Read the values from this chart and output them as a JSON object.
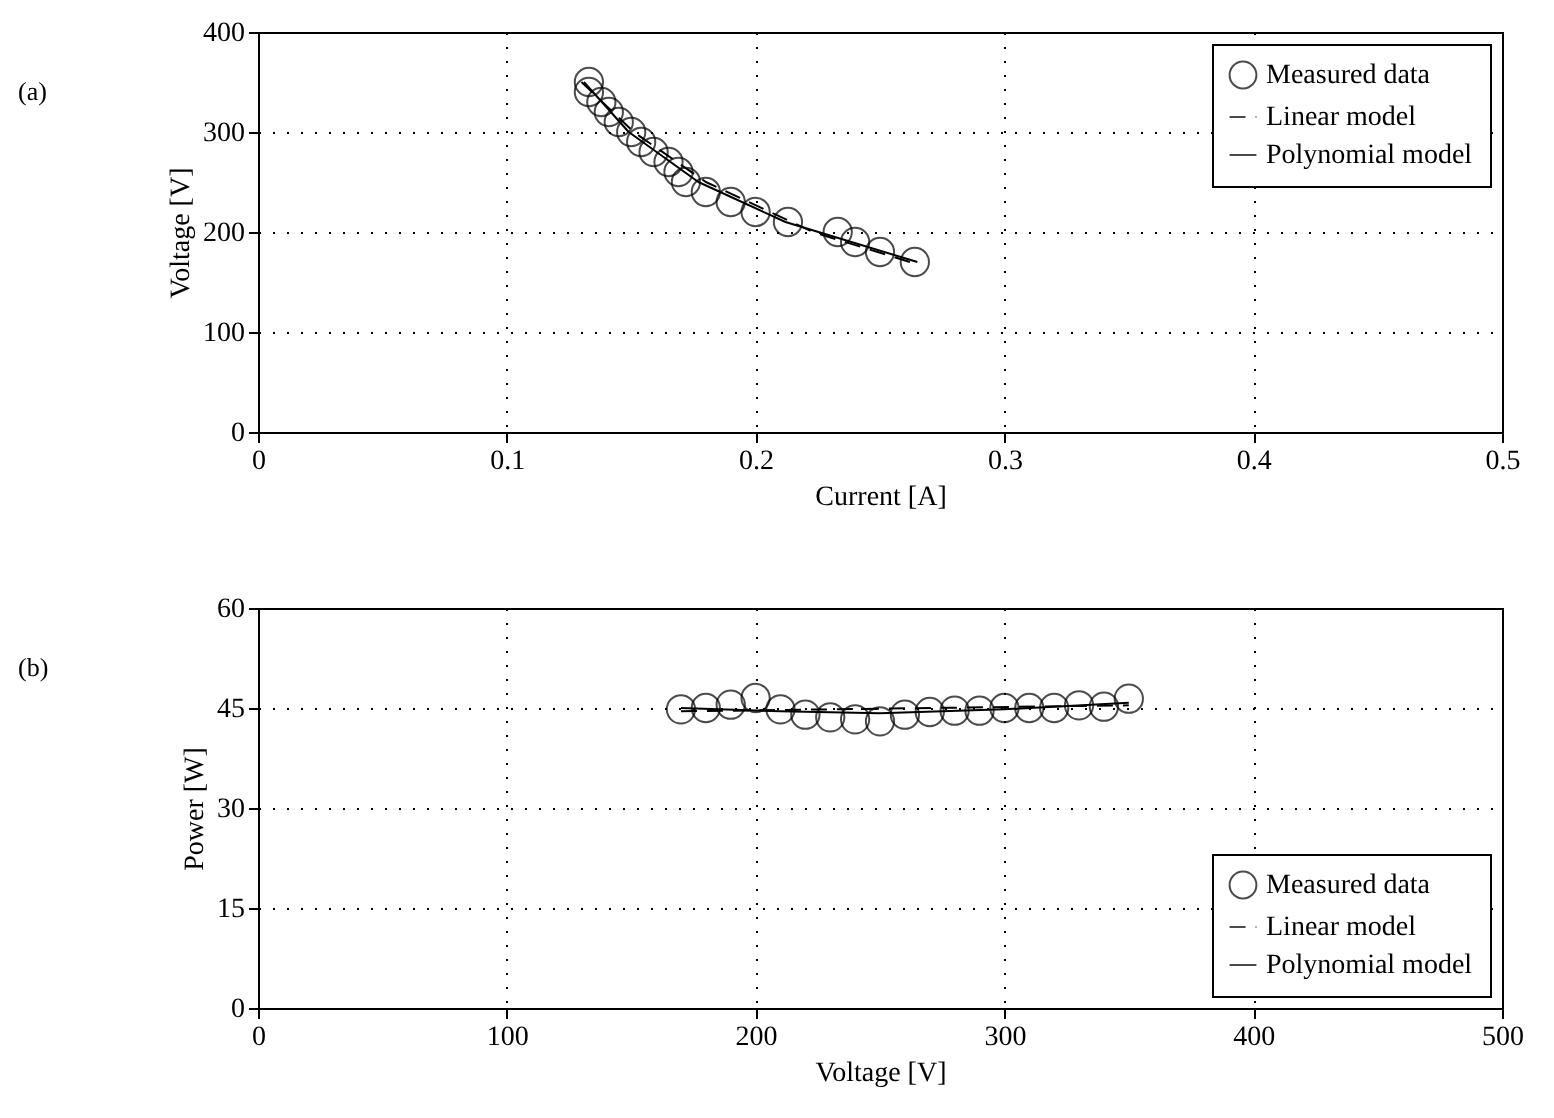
{
  "chart_data": [
    {
      "type": "scatter",
      "annotations": [
        "(a)"
      ],
      "xlabel": "Current [A]",
      "ylabel": "Voltage [V]",
      "xlim": [
        0,
        0.5
      ],
      "xticks": [
        0,
        0.1,
        0.2,
        0.3,
        0.4,
        0.5
      ],
      "ylim": [
        0,
        400
      ],
      "yticks": [
        0,
        100,
        200,
        300,
        400
      ],
      "grid": true,
      "legend": "top right",
      "series": [
        {
          "name": "Measured data",
          "type": "scatter",
          "marker": "circle",
          "color": "#000000",
          "x": [
            0.264,
            0.25,
            0.24,
            0.233,
            0.213,
            0.2,
            0.19,
            0.18,
            0.172,
            0.169,
            0.165,
            0.159,
            0.154,
            0.15,
            0.145,
            0.141,
            0.138,
            0.133,
            0.133
          ],
          "values": [
            170,
            180,
            190,
            200,
            210,
            220,
            230,
            240,
            250,
            260,
            270,
            280,
            290,
            300,
            310,
            320,
            330,
            340,
            350
          ]
        },
        {
          "name": "Linear model",
          "type": "line",
          "line_style": "dashed",
          "color": "#000000",
          "x": [
            0.262,
            0.223,
            0.18,
            0.151,
            0.13
          ],
          "values": [
            170,
            200,
            250,
            300,
            350
          ]
        },
        {
          "name": "Polynomial model",
          "type": "line",
          "line_style": "solid",
          "color": "#000000",
          "x": [
            0.265,
            0.212,
            0.177,
            0.149,
            0.131
          ],
          "values": [
            170,
            210,
            250,
            300,
            350
          ]
        }
      ]
    },
    {
      "type": "scatter",
      "annotations": [
        "(b)"
      ],
      "xlabel": "Voltage [V]",
      "ylabel": "Power [W]",
      "xlim": [
        0,
        500
      ],
      "xticks": [
        0,
        100,
        200,
        300,
        400,
        500
      ],
      "ylim": [
        0,
        60
      ],
      "yticks": [
        0,
        15,
        30,
        45,
        60
      ],
      "grid": true,
      "legend": "bottom right",
      "series": [
        {
          "name": "Measured data",
          "type": "scatter",
          "marker": "circle",
          "color": "#000000",
          "x": [
            170,
            180,
            190,
            200,
            210,
            220,
            230,
            240,
            250,
            260,
            270,
            280,
            290,
            300,
            310,
            320,
            330,
            340,
            350
          ],
          "values": [
            44.8,
            45,
            45.5,
            46.5,
            44.8,
            44,
            43.6,
            43.3,
            43,
            44,
            44.4,
            44.6,
            44.6,
            45,
            45,
            45,
            45.4,
            45.2,
            46.4
          ]
        },
        {
          "name": "Linear model",
          "type": "line",
          "line_style": "dashed",
          "color": "#000000",
          "x": [
            170,
            350
          ],
          "values": [
            44.5,
            45.4
          ]
        },
        {
          "name": "Polynomial model",
          "type": "line",
          "line_style": "solid",
          "color": "#000000",
          "x": [
            170,
            210,
            250,
            300,
            350
          ],
          "values": [
            45.0,
            44.5,
            44.2,
            44.8,
            45.8
          ]
        }
      ]
    }
  ]
}
